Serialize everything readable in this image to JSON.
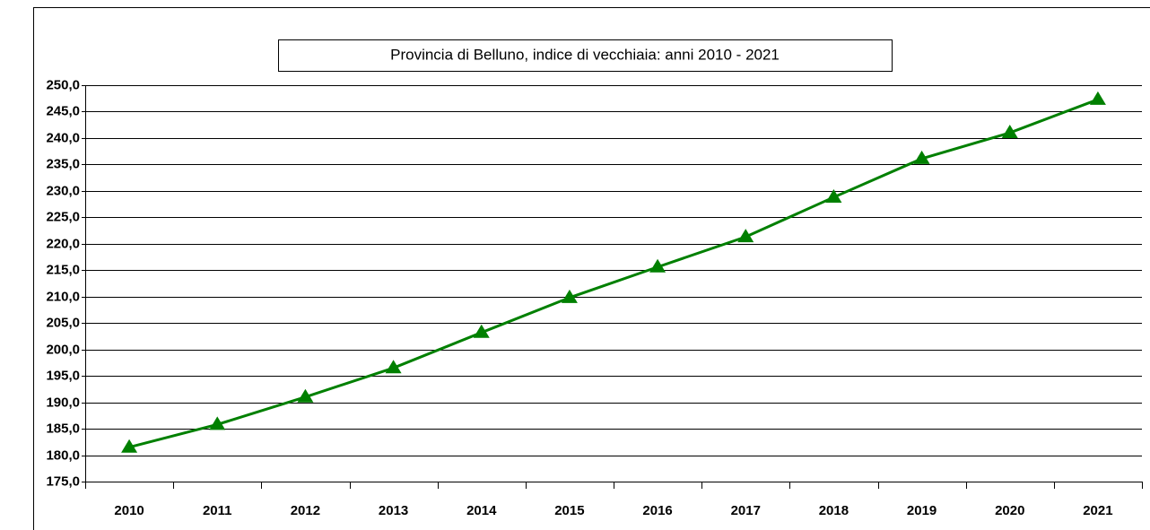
{
  "chart_data": {
    "type": "line",
    "title": "Provincia di Belluno, indice di vecchiaia: anni 2010 - 2021",
    "categories": [
      "2010",
      "2011",
      "2012",
      "2013",
      "2014",
      "2015",
      "2016",
      "2017",
      "2018",
      "2019",
      "2020",
      "2021"
    ],
    "series": [
      {
        "name": "Indice di vecchiaia",
        "color": "#008000",
        "values": [
          181.5,
          185.8,
          191.0,
          196.5,
          203.2,
          209.8,
          215.6,
          221.3,
          228.8,
          236.1,
          241.0,
          247.3
        ]
      }
    ],
    "ylim": [
      175,
      250
    ],
    "yticks": [
      {
        "value": 175,
        "label": "175,0"
      },
      {
        "value": 180,
        "label": "180,0"
      },
      {
        "value": 185,
        "label": "185,0"
      },
      {
        "value": 190,
        "label": "190,0"
      },
      {
        "value": 195,
        "label": "195,0"
      },
      {
        "value": 200,
        "label": "200,0"
      },
      {
        "value": 205,
        "label": "205,0"
      },
      {
        "value": 210,
        "label": "210,0"
      },
      {
        "value": 215,
        "label": "215,0"
      },
      {
        "value": 220,
        "label": "220,0"
      },
      {
        "value": 225,
        "label": "225,0"
      },
      {
        "value": 230,
        "label": "230,0"
      },
      {
        "value": 235,
        "label": "235,0"
      },
      {
        "value": 240,
        "label": "240,0"
      },
      {
        "value": 245,
        "label": "245,0"
      },
      {
        "value": 250,
        "label": "250,0"
      }
    ],
    "grid": true
  }
}
